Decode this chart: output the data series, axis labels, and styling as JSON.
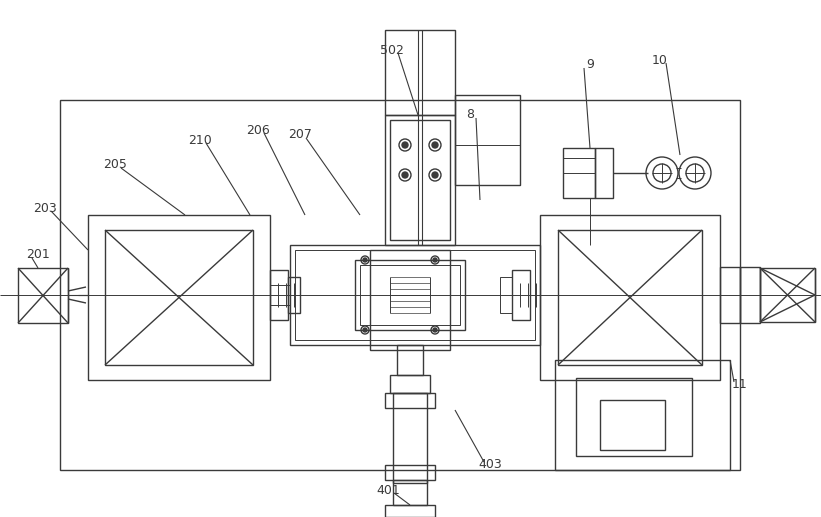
{
  "bg_color": "#ffffff",
  "line_color": "#3a3a3a",
  "lw": 1.0,
  "fig_width": 8.21,
  "fig_height": 5.17
}
